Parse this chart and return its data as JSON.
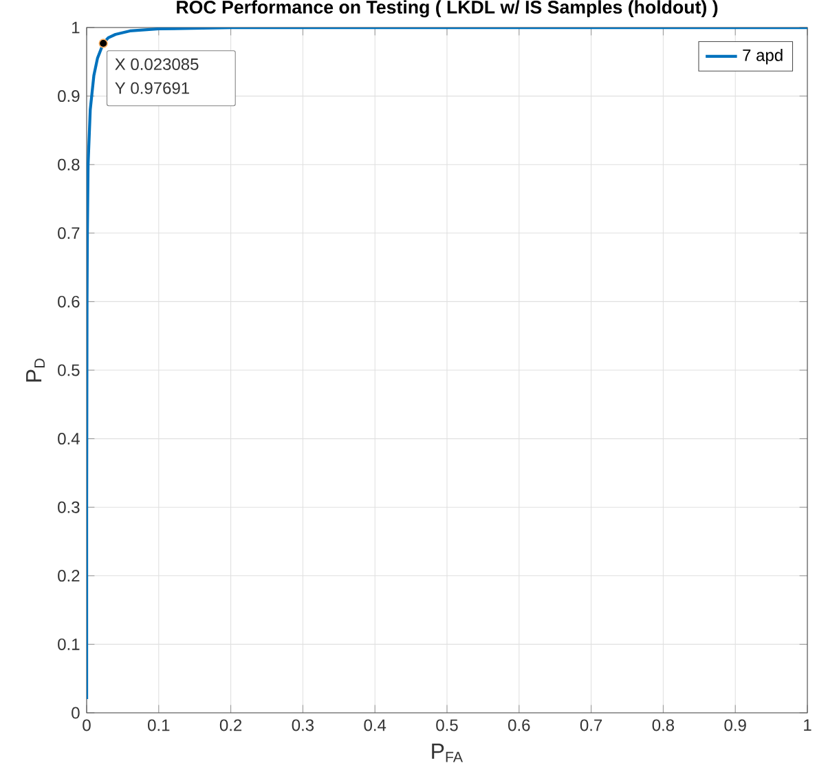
{
  "chart_data": {
    "type": "line",
    "title": "ROC Performance on Testing ( LKDL w/ IS Samples (holdout) )",
    "xlabel": "P$_{FA}$",
    "ylabel": "P$_{D}$",
    "x": [
      0,
      0,
      0.0005,
      0.001,
      0.002,
      0.005,
      0.01,
      0.015,
      0.023085,
      0.03,
      0.04,
      0.06,
      0.1,
      0.2,
      1
    ],
    "series": [
      {
        "name": "7 apd",
        "color": "#0072bd",
        "values": [
          0.02,
          0.3,
          0.6,
          0.7,
          0.8,
          0.88,
          0.93,
          0.955,
          0.97691,
          0.985,
          0.99,
          0.995,
          0.998,
          1,
          1
        ]
      }
    ],
    "xlim": [
      0,
      1
    ],
    "ylim": [
      0,
      1
    ],
    "xticks": [
      0,
      0.1,
      0.2,
      0.3,
      0.4,
      0.5,
      0.6,
      0.7,
      0.8,
      0.9,
      1
    ],
    "yticks": [
      0,
      0.1,
      0.2,
      0.3,
      0.4,
      0.5,
      0.6,
      0.7,
      0.8,
      0.9,
      1
    ],
    "annotations": [
      {
        "text": "X 0.023085",
        "x": 0.023085,
        "y": 0.97691
      },
      {
        "text": "Y 0.97691",
        "x": 0.023085,
        "y": 0.97691
      }
    ],
    "grid": true,
    "legend": "top right",
    "marker": "none",
    "line_style": "solid"
  }
}
